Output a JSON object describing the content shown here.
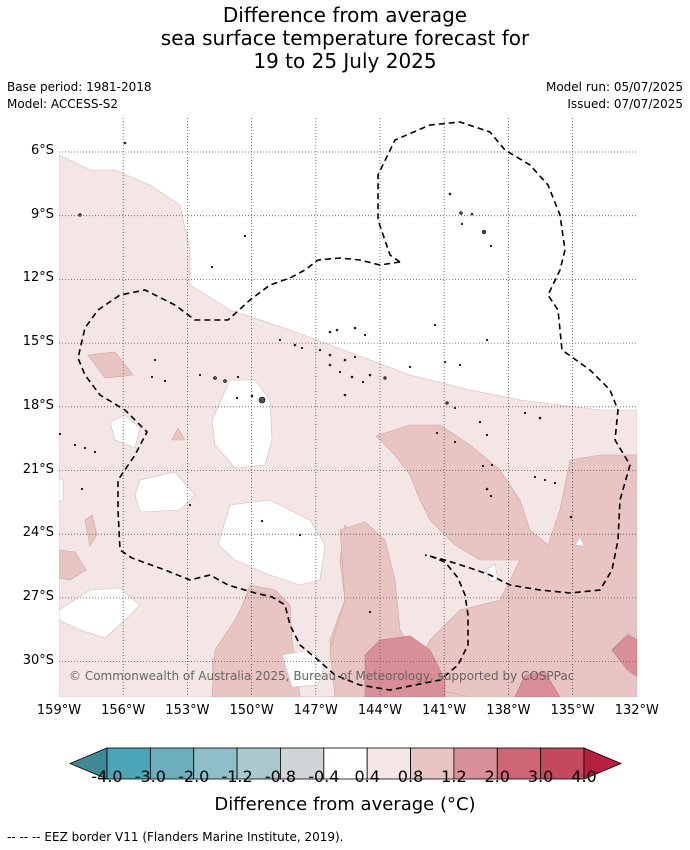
{
  "title": {
    "line1": "Difference from average",
    "line2": "sea surface temperature forecast for",
    "line3": "19 to 25 July 2025"
  },
  "meta": {
    "base_period": "Base period: 1981-2018",
    "model": "Model: ACCESS-S2",
    "model_run": "Model run: 05/07/2025",
    "issued": "Issued: 07/07/2025"
  },
  "map": {
    "lat_labels": [
      "6°S",
      "9°S",
      "12°S",
      "15°S",
      "18°S",
      "21°S",
      "24°S",
      "27°S",
      "30°S"
    ],
    "lon_labels": [
      "159°W",
      "156°W",
      "153°W",
      "150°W",
      "147°W",
      "144°W",
      "141°W",
      "138°W",
      "135°W",
      "132°W"
    ],
    "copyright": "© Commonwealth of Australia 2025, Bureau of Meteorology, supported by COSPPac",
    "colors": {
      "light_warm": "#f4e6e5",
      "mid_warm": "#e8c5c2",
      "warm": "#d88f97",
      "dark_warm": "#cd6e7c",
      "grid": "#555555",
      "eez": "#000000"
    }
  },
  "colorbar": {
    "ticks": [
      "-4.0",
      "-3.0",
      "-2.0",
      "-1.2",
      "-0.8",
      "-0.4",
      "0.4",
      "0.8",
      "1.2",
      "2.0",
      "3.0",
      "4.0"
    ],
    "colors": [
      "#3e8b95",
      "#4aa6b6",
      "#6daebd",
      "#8ebec8",
      "#aac9cd",
      "#d0d6d7",
      "#ffffff",
      "#f4e6e5",
      "#e8c5c2",
      "#d88f97",
      "#cd6575",
      "#c34a5e",
      "#b5213e"
    ],
    "label": "Difference from average (°C)"
  },
  "footer": "-- -- -- EEZ border V11 (Flanders Marine Institute, 2019)."
}
